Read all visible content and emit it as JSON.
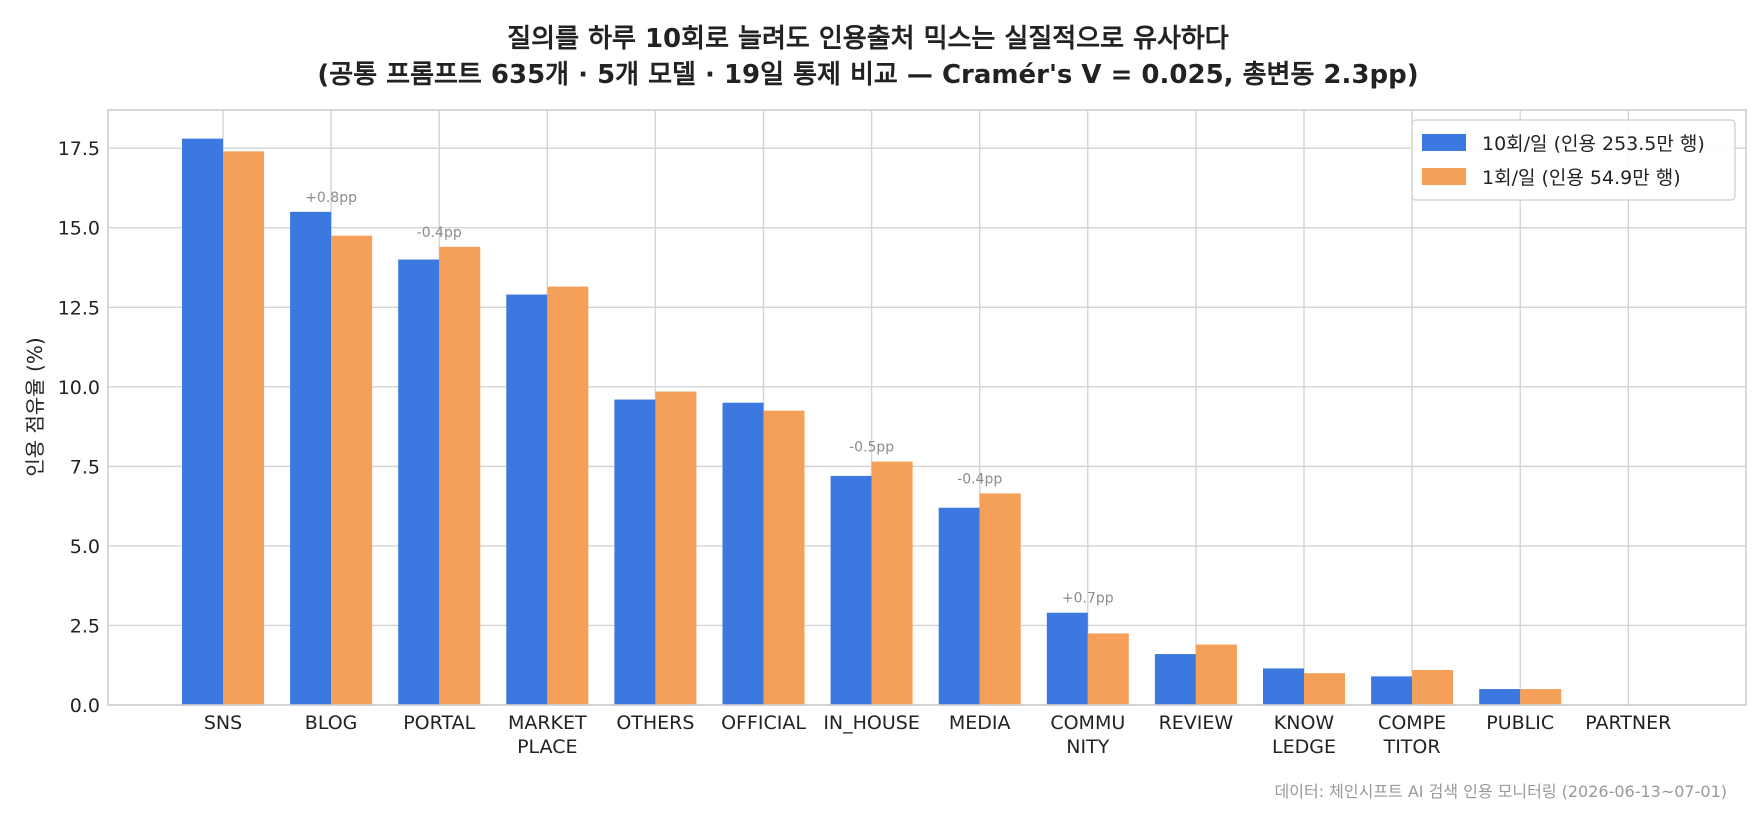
{
  "chart_data": {
    "type": "bar",
    "title_line1": "질의를 하루 10회로 늘려도 인용출처 믹스는 실질적으로 유사하다",
    "title_line2": "(공통 프롬프트 635개 · 5개 모델 · 19일 통제 비교 — Cramér's V = 0.025, 총변동 2.3pp)",
    "xlabel": "",
    "ylabel": "인용 점유율 (%)",
    "ylim": [
      0,
      18.7
    ],
    "yticks": [
      "0.0",
      "2.5",
      "5.0",
      "7.5",
      "10.0",
      "12.5",
      "15.0",
      "17.5"
    ],
    "grid": true,
    "legend_position": "top-right",
    "categories": [
      [
        "SNS"
      ],
      [
        "BLOG"
      ],
      [
        "PORTAL"
      ],
      [
        "MARKET",
        "PLACE"
      ],
      [
        "OTHERS"
      ],
      [
        "OFFICIAL"
      ],
      [
        "IN_HOUSE"
      ],
      [
        "MEDIA"
      ],
      [
        "COMMU",
        "NITY"
      ],
      [
        "REVIEW"
      ],
      [
        "KNOW",
        "LEDGE"
      ],
      [
        "COMPE",
        "TITOR"
      ],
      [
        "PUBLIC"
      ],
      [
        "PARTNER"
      ]
    ],
    "series": [
      {
        "name": "10회/일 (인용 253.5만 행)",
        "color": "#3b78e0",
        "values": [
          17.8,
          15.5,
          14.0,
          12.9,
          9.6,
          9.5,
          7.2,
          6.2,
          2.9,
          1.6,
          1.15,
          0.9,
          0.5,
          0.0
        ]
      },
      {
        "name": "1회/일 (인용 54.9만 행)",
        "color": "#f4a058",
        "values": [
          17.4,
          14.75,
          14.4,
          13.15,
          9.85,
          9.25,
          7.65,
          6.65,
          2.25,
          1.9,
          1.0,
          1.1,
          0.5,
          0.0
        ]
      }
    ],
    "annotations": [
      {
        "category_index": 1,
        "text": "+0.8pp"
      },
      {
        "category_index": 2,
        "text": "-0.4pp"
      },
      {
        "category_index": 6,
        "text": "-0.5pp"
      },
      {
        "category_index": 7,
        "text": "-0.4pp"
      },
      {
        "category_index": 8,
        "text": "+0.7pp"
      }
    ],
    "source": "데이터: 체인시프트 AI 검색 인용 모니터링 (2026-06-13~07-01)"
  }
}
